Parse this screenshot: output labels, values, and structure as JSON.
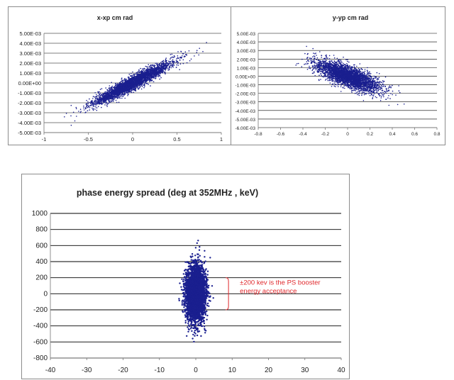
{
  "colors": {
    "points": "#1a1f8f",
    "annotation": "#e0282c",
    "grid": "#000000"
  },
  "chart_data": [
    {
      "type": "scatter",
      "title": "x-xp  cm rad",
      "xlim": [
        -1,
        1
      ],
      "ylim": [
        -0.005,
        0.005
      ],
      "x_ticks": [
        "-1",
        "-0.5",
        "0",
        "0.5",
        "1"
      ],
      "y_ticks": [
        "5.00E-03",
        "4.00E-03",
        "3.00E-03",
        "2.00E-03",
        "1.00E-03",
        "0.00E+00",
        "-1.00E-03",
        "-2.00E-03",
        "-3.00E-03",
        "-4.00E-03",
        "-5.00E-03"
      ],
      "grid": "horizontal",
      "distribution": {
        "center": [
          0,
          0
        ],
        "x_spread": 0.22,
        "slope": 0.0046,
        "y_noise": 0.00035,
        "count": 3500
      }
    },
    {
      "type": "scatter",
      "title": "y-yp  cm rad",
      "xlim": [
        -0.8,
        0.8
      ],
      "ylim": [
        -0.006,
        0.005
      ],
      "x_ticks": [
        "-0.8",
        "-0.6",
        "-0.4",
        "-0.2",
        "0",
        "0.2",
        "0.4",
        "0.6",
        "0.8"
      ],
      "y_ticks": [
        "5.00E-03",
        "4.00E-03",
        "3.00E-03",
        "2.00E-03",
        "1.00E-03",
        "0.00E+00",
        "-1.00E-03",
        "-2.00E-03",
        "-3.00E-03",
        "-4.00E-03",
        "-5.00E-03",
        "-6.00E-03"
      ],
      "grid": "horizontal",
      "distribution": {
        "center": [
          0,
          0
        ],
        "x_spread": 0.14,
        "slope": -0.0048,
        "y_noise": 0.0006,
        "count": 3500
      }
    },
    {
      "type": "scatter",
      "title": "phase energy spread  (deg at 352MHz , keV)",
      "xlim": [
        -40,
        40
      ],
      "ylim": [
        -800,
        1000
      ],
      "x_ticks": [
        "-40",
        "-30",
        "-20",
        "-10",
        "0",
        "10",
        "20",
        "30",
        "40"
      ],
      "y_ticks": [
        "1000",
        "800",
        "600",
        "400",
        "200",
        "0",
        "-200",
        "-400",
        "-600",
        "-800"
      ],
      "grid": "horizontal",
      "distribution": {
        "center": [
          0,
          0
        ],
        "x_spread": 1.3,
        "y_spread": 170,
        "count": 4000
      },
      "annotation": {
        "text_lines": [
          "±200 kev is the PS booster",
          "energy acceptance"
        ],
        "range": [
          -200,
          200
        ]
      }
    }
  ]
}
